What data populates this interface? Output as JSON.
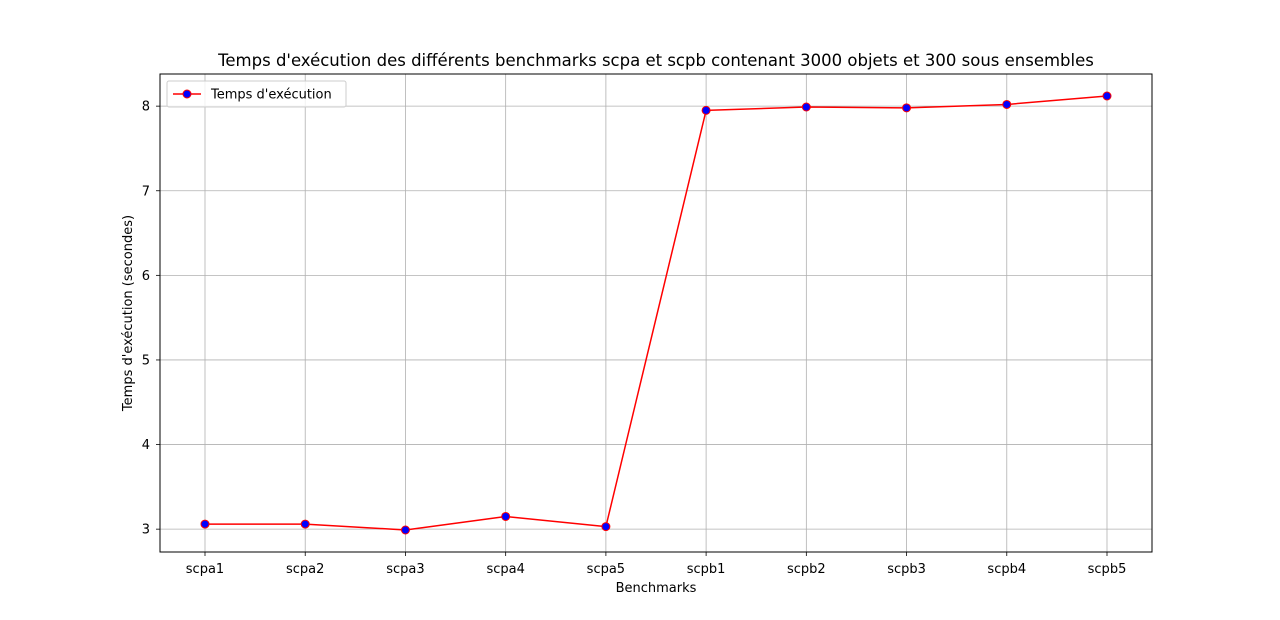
{
  "chart_data": {
    "type": "line",
    "title": "Temps d'exécution des différents benchmarks scpa et scpb contenant 3000 objets et 300 sous ensembles",
    "xlabel": "Benchmarks",
    "ylabel": "Temps d'exécution (secondes)",
    "categories": [
      "scpa1",
      "scpa2",
      "scpa3",
      "scpa4",
      "scpa5",
      "scpb1",
      "scpb2",
      "scpb3",
      "scpb4",
      "scpb5"
    ],
    "series": [
      {
        "name": "Temps d'exécution",
        "values": [
          3.06,
          3.06,
          2.99,
          3.15,
          3.03,
          7.95,
          7.99,
          7.98,
          8.02,
          8.12
        ],
        "line_color": "#ff0000",
        "marker_color": "#0000ff"
      }
    ],
    "ylim": [
      2.73,
      8.38
    ],
    "yticks": [
      3,
      4,
      5,
      6,
      7,
      8
    ],
    "grid": true,
    "legend_position": "top-left"
  }
}
